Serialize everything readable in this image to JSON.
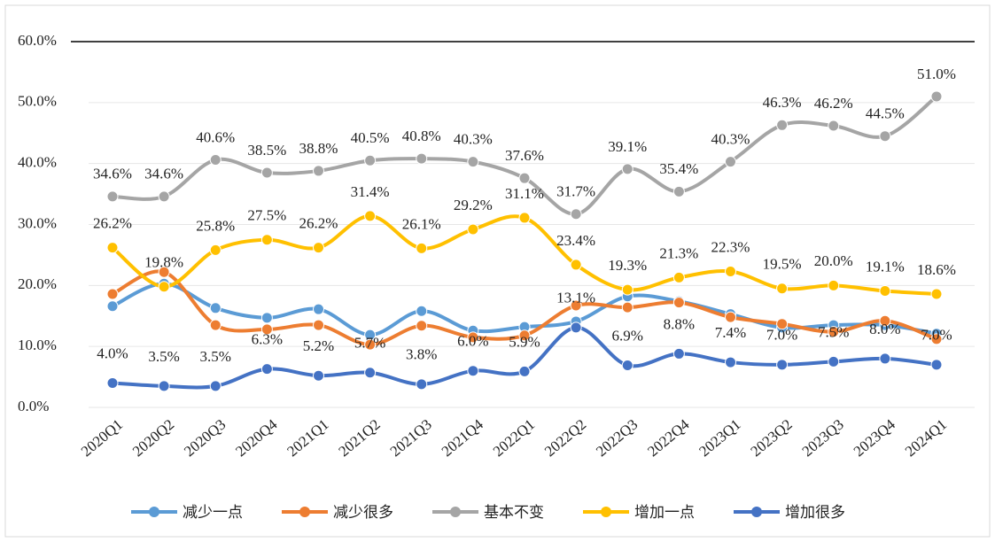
{
  "chart_data": {
    "type": "line",
    "categories": [
      "2020Q1",
      "2020Q2",
      "2020Q3",
      "2020Q4",
      "2021Q1",
      "2021Q2",
      "2021Q3",
      "2021Q4",
      "2022Q1",
      "2022Q2",
      "2022Q3",
      "2022Q4",
      "2023Q1",
      "2023Q2",
      "2023Q3",
      "2023Q4",
      "2024Q1"
    ],
    "ylim": [
      0,
      60
    ],
    "yticks": [
      {
        "value": 0,
        "label": "0.0%"
      },
      {
        "value": 10,
        "label": "10.0%"
      },
      {
        "value": 20,
        "label": "20.0%"
      },
      {
        "value": 30,
        "label": "30.0%"
      },
      {
        "value": 40,
        "label": "40.0%"
      },
      {
        "value": 50,
        "label": "50.0%"
      },
      {
        "value": 60,
        "label": "60.0%"
      }
    ],
    "series": [
      {
        "name": "减少一点",
        "color": "#5b9bd5",
        "values": [
          16.6,
          20.3,
          16.3,
          14.7,
          16.1,
          11.9,
          15.8,
          12.6,
          13.2,
          14.1,
          18.2,
          17.4,
          15.3,
          13.1,
          13.5,
          13.5,
          12.1
        ]
      },
      {
        "name": "减少很多",
        "color": "#ed7d31",
        "values": [
          18.6,
          22.2,
          13.5,
          12.8,
          13.5,
          10.3,
          13.4,
          11.5,
          11.8,
          16.7,
          16.4,
          17.2,
          14.8,
          13.7,
          12.4,
          14.2,
          11.2
        ]
      },
      {
        "name": "基本不变",
        "color": "#a5a5a5",
        "values": [
          34.6,
          34.6,
          40.6,
          38.5,
          38.8,
          40.5,
          40.8,
          40.3,
          37.6,
          31.7,
          39.1,
          35.4,
          40.3,
          46.3,
          46.2,
          44.5,
          51.0
        ],
        "value_labels": [
          "34.6%",
          "34.6%",
          "40.6%",
          "38.5%",
          "38.8%",
          "40.5%",
          "40.8%",
          "40.3%",
          "37.6%",
          "31.7%",
          "39.1%",
          "35.4%",
          "40.3%",
          "46.3%",
          "46.2%",
          "44.5%",
          "51.0%"
        ]
      },
      {
        "name": "增加一点",
        "color": "#ffc000",
        "values": [
          26.2,
          19.8,
          25.8,
          27.5,
          26.2,
          31.4,
          26.1,
          29.2,
          31.1,
          23.4,
          19.3,
          21.3,
          22.3,
          19.5,
          20.0,
          19.1,
          18.6
        ],
        "value_labels": [
          "26.2%",
          "19.8%",
          "25.8%",
          "27.5%",
          "26.2%",
          "31.4%",
          "26.1%",
          "29.2%",
          "31.1%",
          "23.4%",
          "19.3%",
          "21.3%",
          "22.3%",
          "19.5%",
          "20.0%",
          "19.1%",
          "18.6%"
        ]
      },
      {
        "name": "增加很多",
        "color": "#4472c4",
        "values": [
          4.0,
          3.5,
          3.5,
          6.3,
          5.2,
          5.7,
          3.8,
          6.0,
          5.9,
          13.1,
          6.9,
          8.8,
          7.4,
          7.0,
          7.5,
          8.0,
          7.0
        ],
        "value_labels": [
          "4.0%",
          "3.5%",
          "3.5%",
          "6.3%",
          "5.2%",
          "5.7%",
          "3.8%",
          "6.0%",
          "5.9%",
          "13.1%",
          "6.9%",
          "8.8%",
          "7.4%",
          "7.0%",
          "7.5%",
          "8.0%",
          "7.0%"
        ]
      }
    ]
  }
}
